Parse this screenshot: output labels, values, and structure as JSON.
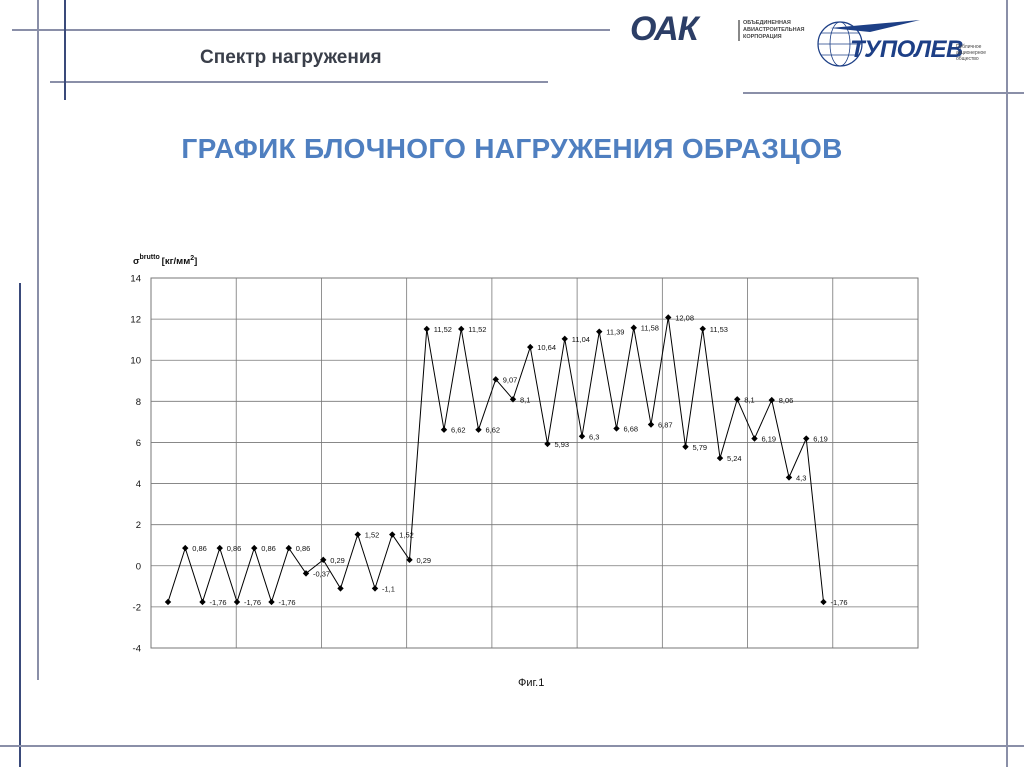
{
  "header": {
    "subtitle": "Спектр нагружения",
    "title": "ГРАФИК БЛОЧНОГО НАГРУЖЕНИЯ ОБРАЗЦОВ"
  },
  "logos": {
    "oak": {
      "name": "ОАК",
      "tagline": "ОБЪЕДИНЕННАЯ АВИАСТРОИТЕЛЬНАЯ КОРПОРАЦИЯ"
    },
    "tupolev": {
      "name": "ТУПОЛЕВ",
      "tagline": "Публичное акционерное общество"
    }
  },
  "colors": {
    "title": "#4f7fc0",
    "frame": "#8a8fa8",
    "series": "#000000",
    "grid": "#777777"
  },
  "figure_caption": "Фиг.1",
  "chart_data": {
    "type": "line",
    "ylabel": "σ brutto [кг/мм2]",
    "ylabel_parts": {
      "sym": "σ",
      "sup": "brutto",
      "unit": "[кг/мм",
      "unit_sup": "2",
      "unit_close": "]"
    },
    "ylim": [
      -4,
      14
    ],
    "yticks": [
      -4,
      -2,
      0,
      2,
      4,
      6,
      8,
      10,
      12,
      14
    ],
    "grid": true,
    "legend": "none",
    "series": [
      {
        "values": [
          -1.76,
          0.86,
          -1.76,
          0.86,
          -1.76,
          0.86,
          -1.76,
          0.86,
          -0.37,
          0.29,
          -1.1,
          1.52,
          -1.1,
          1.52,
          0.29,
          11.52,
          6.62,
          11.52,
          6.62,
          9.07,
          8.1,
          10.64,
          5.93,
          11.04,
          6.3,
          11.39,
          6.68,
          11.58,
          6.87,
          12.08,
          5.79,
          11.53,
          5.24,
          8.1,
          6.19,
          8.06,
          4.3,
          6.19,
          -1.76
        ],
        "labels": [
          "-1,76",
          "0,86",
          "-1,76",
          "0,86",
          "-1,76",
          "0,86",
          "-1,76",
          "0,86",
          "-0,37",
          "0,29",
          "-1,1",
          "1,52",
          "-1,1",
          "1,52",
          "0,29",
          "11,52",
          "6,62",
          "11,52",
          "6,62",
          "9,07",
          "8,1",
          "10,64",
          "5,93",
          "11,04",
          "6,3",
          "11,39",
          "6,68",
          "11,58",
          "6,87",
          "12,08",
          "5,79",
          "11,53",
          "5,24",
          "8,1",
          "6,19",
          "8,06",
          "4,3",
          "6,19",
          "-1,76"
        ],
        "labeled": [
          false,
          true,
          true,
          true,
          true,
          true,
          true,
          true,
          true,
          true,
          false,
          true,
          true,
          true,
          true,
          true,
          true,
          true,
          true,
          true,
          true,
          true,
          true,
          true,
          true,
          true,
          true,
          true,
          true,
          true,
          true,
          true,
          true,
          true,
          true,
          true,
          true,
          true,
          true
        ]
      }
    ]
  }
}
